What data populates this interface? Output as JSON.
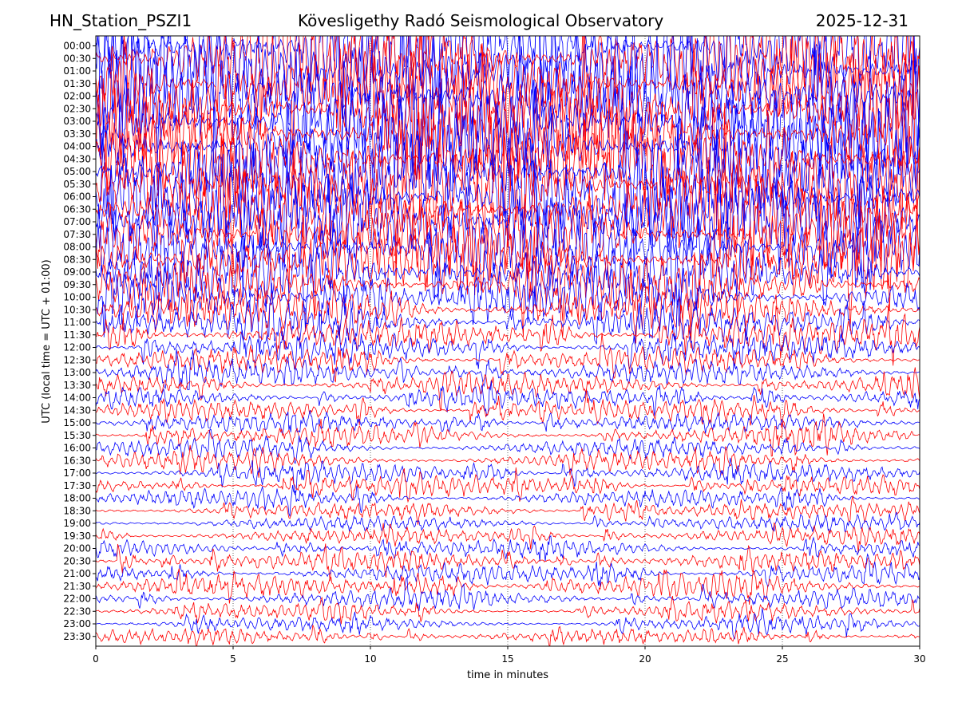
{
  "header": {
    "station": "HN_Station_PSZI1",
    "observatory": "Kövesligethy Radó Seismological Observatory",
    "date": "2025-12-31"
  },
  "chart_data": {
    "type": "line",
    "title": "Kövesligethy Radó Seismological Observatory",
    "xlabel": "time in minutes",
    "ylabel": "UTC (local time = UTC + 01:00)",
    "xlim": [
      0,
      30
    ],
    "x_ticks": [
      "0",
      "5",
      "10",
      "15",
      "20",
      "25",
      "30"
    ],
    "vertical_gridlines_at": [
      5,
      10,
      15,
      20,
      25
    ],
    "y_ticks": [
      "00:00",
      "00:30",
      "01:00",
      "01:30",
      "02:00",
      "02:30",
      "03:00",
      "03:30",
      "04:00",
      "04:30",
      "05:00",
      "05:30",
      "06:00",
      "06:30",
      "07:00",
      "07:30",
      "08:00",
      "08:30",
      "09:00",
      "09:30",
      "10:00",
      "10:30",
      "11:00",
      "11:30",
      "12:00",
      "12:30",
      "13:00",
      "13:30",
      "14:00",
      "14:30",
      "15:00",
      "15:30",
      "16:00",
      "16:30",
      "17:00",
      "17:30",
      "18:00",
      "18:30",
      "19:00",
      "19:30",
      "20:00",
      "20:30",
      "21:00",
      "21:30",
      "22:00",
      "22:30",
      "23:00",
      "23:30"
    ],
    "trace_colors": [
      "#0000ff",
      "#ff0000"
    ],
    "trace_color_order": "alternating per 30-minute line: blue at 00:00, red at 00:30",
    "relative_amplitude_by_line": [
      8,
      8,
      8,
      8,
      8,
      8,
      8,
      8,
      8,
      8,
      7.5,
      7.5,
      7,
      7,
      7,
      6.5,
      6,
      5.5,
      5,
      4.5,
      4,
      3.5,
      3,
      2.6,
      2.3,
      2.1,
      2,
      1.9,
      1.8,
      1.7,
      1.6,
      1.6,
      1.6,
      1.6,
      1.6,
      1.6,
      1.5,
      1.4,
      1.3,
      1.4,
      1.5,
      1.6,
      1.7,
      1.8,
      1.6,
      1.3,
      1.2,
      1.2
    ]
  }
}
